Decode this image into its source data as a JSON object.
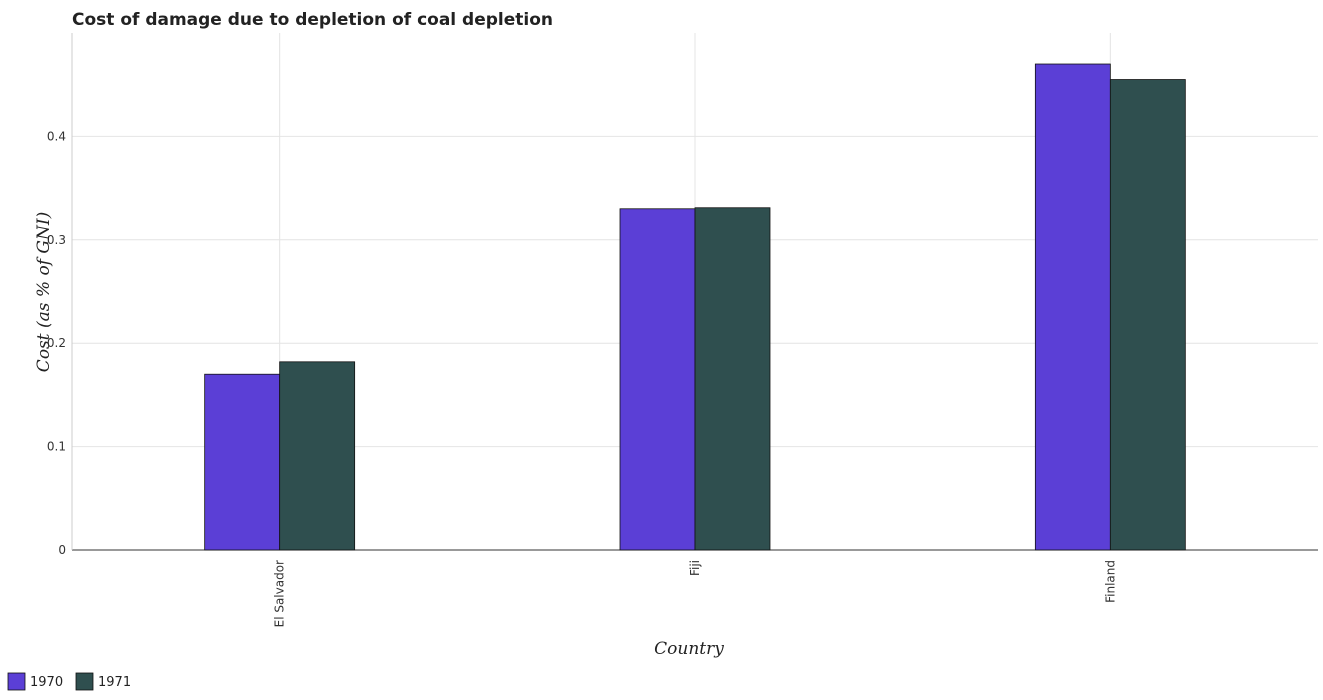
{
  "chart_data": {
    "type": "bar",
    "title": "Cost of damage due to depletion of coal depletion",
    "xlabel": "Country",
    "ylabel": "Cost (as % of GNI)",
    "categories": [
      "El Salvador",
      "Fiji",
      "Finland"
    ],
    "series": [
      {
        "name": "1970",
        "values": [
          0.17,
          0.33,
          0.47
        ],
        "color": "#5b3fd6"
      },
      {
        "name": "1971",
        "values": [
          0.182,
          0.331,
          0.455
        ],
        "color": "#2f4f4f"
      }
    ],
    "ylim": [
      0,
      0.5
    ],
    "yticks": [
      0,
      0.1,
      0.2,
      0.3,
      0.4
    ],
    "ytick_labels": [
      "0",
      "0.1",
      "0.2",
      "0.3",
      "0.4"
    ],
    "grid": true,
    "legend_position": "bottom-left"
  }
}
